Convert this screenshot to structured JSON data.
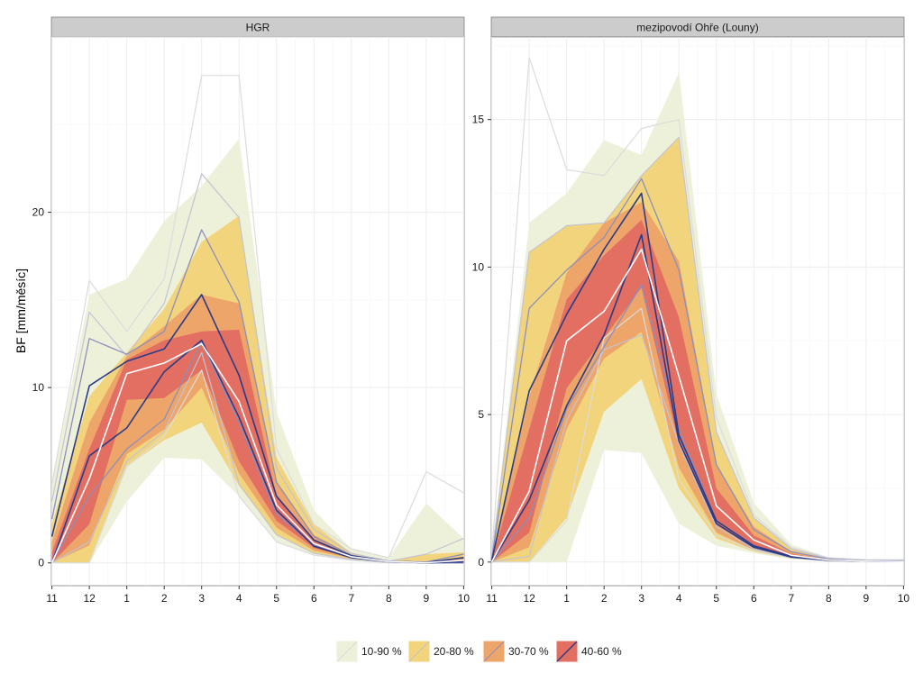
{
  "chart_data": {
    "type": "area",
    "ylabel": "BF [mm/měsíc]",
    "xlabel": "",
    "x_ticks": [
      "11",
      "12",
      "1",
      "2",
      "3",
      "4",
      "5",
      "6",
      "7",
      "8",
      "9",
      "10"
    ],
    "legend": {
      "position": "bottom",
      "entries": [
        "10-90 %",
        "20-80 %",
        "30-70 %",
        "40-60 %"
      ]
    },
    "colors": {
      "band_10_90": "#eef1da",
      "band_20_80": "#f2d47c",
      "band_30_70": "#eda56a",
      "band_40_60": "#e26f62",
      "median": "#ffffff",
      "bound_10_90": "#dcdcdc",
      "bound_20_80": "#c3c3d2",
      "bound_30_70": "#8c8fbb",
      "bound_40_60": "#2c3b86",
      "strip_bg": "#cccccc",
      "panel_bg": "#ffffff",
      "grid": "#ececec"
    },
    "panels": [
      {
        "title": "HGR",
        "ylim": [
          -1.3,
          30
        ],
        "y_ticks": [
          0,
          10,
          20
        ],
        "bands": {
          "p10_90": {
            "lower": [
              0,
              0,
              3.5,
              6,
              5.9,
              3.8,
              1.2,
              0.45,
              0.15,
              0,
              0,
              0
            ],
            "upper": [
              4.5,
              15.3,
              16.2,
              19.5,
              21.5,
              24.2,
              8.6,
              3,
              0.8,
              0.3,
              3.4,
              1.4
            ]
          },
          "p20_80": {
            "lower": [
              0,
              0,
              5.5,
              7,
              8,
              4.4,
              1.6,
              0.55,
              0.2,
              0.02,
              0,
              0
            ],
            "upper": [
              2.2,
              9.5,
              12,
              14.5,
              18.3,
              19.8,
              6,
              2.2,
              0.55,
              0.1,
              0.5,
              0.6
            ]
          },
          "p30_70": {
            "lower": [
              0,
              1,
              6.2,
              7.6,
              10,
              5.1,
              2,
              0.7,
              0.25,
              0.05,
              0,
              0
            ],
            "upper": [
              1.2,
              8,
              11.8,
              13.5,
              15.3,
              14.8,
              4.6,
              1.6,
              0.45,
              0.08,
              0.05,
              0.35
            ]
          },
          "p40_60": {
            "lower": [
              0,
              2.2,
              9.3,
              9.4,
              11,
              5.8,
              2.4,
              0.85,
              0.3,
              0.08,
              0,
              0.05
            ],
            "upper": [
              0.6,
              6.5,
              11.6,
              12.7,
              13.2,
              13.3,
              3.8,
              1.3,
              0.4,
              0.1,
              0.02,
              0.2
            ]
          }
        },
        "median": [
          0,
          4.8,
          10.8,
          11.4,
          12.5,
          9.2,
          3.3,
          1.1,
          0.35,
          0.08,
          0.01,
          0.15
        ],
        "bound_lines": {
          "l10": [
            0,
            0,
            5.5,
            7.2,
            11,
            3.8,
            1.2,
            0.45,
            0.15,
            0,
            0,
            0
          ],
          "u10": [
            4.5,
            16.1,
            13.2,
            16.2,
            27.8,
            27.8,
            6.5,
            2.2,
            0.8,
            0.3,
            5.2,
            4
          ],
          "l20": [
            0,
            1.2,
            5.8,
            7.5,
            12,
            4.5,
            1.6,
            0.55,
            0.2,
            0.02,
            0,
            0
          ],
          "u20": [
            3.5,
            14.3,
            11.8,
            14.8,
            22.2,
            19.7,
            5.4,
            1.9,
            0.55,
            0.1,
            0.5,
            1.4
          ],
          "l30": [
            0,
            3.8,
            6.5,
            8.2,
            12.6,
            8,
            2.8,
            1,
            0.3,
            0.06,
            0,
            0
          ],
          "u30": [
            2.5,
            12.8,
            11.9,
            13.2,
            19,
            14.9,
            4.6,
            1.5,
            0.45,
            0.08,
            0.05,
            0.5
          ],
          "l40": [
            0,
            6.1,
            7.7,
            10.9,
            12.7,
            8.3,
            3,
            0.95,
            0.3,
            0.08,
            0,
            0.05
          ],
          "u40": [
            1.5,
            10.1,
            11.5,
            12.2,
            15.3,
            10.7,
            3.8,
            1.3,
            0.4,
            0.1,
            0.02,
            0.3
          ]
        }
      },
      {
        "title": "mezipovodí Ohře (Louny)",
        "ylim": [
          -0.8,
          17.8
        ],
        "y_ticks": [
          0,
          5,
          10,
          15
        ],
        "bands": {
          "p10_90": {
            "lower": [
              0,
              0,
              0,
              3.8,
              3.7,
              1.3,
              0.55,
              0.3,
              0.1,
              0.03,
              0,
              0
            ],
            "upper": [
              0.3,
              11.5,
              12.5,
              14.3,
              13.8,
              16.6,
              5.7,
              2,
              0.6,
              0.15,
              0.08,
              0.08
            ]
          },
          "p20_80": {
            "lower": [
              0,
              0,
              1.5,
              5.1,
              6.2,
              2.5,
              0.8,
              0.35,
              0.12,
              0.04,
              0.02,
              0.02
            ]
          },
          "p30_70": {
            "lower": [
              0,
              0.5,
              4.5,
              6.9,
              7.8,
              3.2,
              1,
              0.4,
              0.14,
              0.05,
              0.02,
              0.02
            ],
            "upper": [
              0.1,
              5.6,
              9.8,
              11.5,
              12.2,
              10.2,
              3.3,
              1.2,
              0.35,
              0.1,
              0.04,
              0.04
            ]
          },
          "p40_60": {
            "lower": [
              0,
              1,
              5.9,
              7.6,
              9.3,
              4,
              1.3,
              0.5,
              0.17,
              0.06,
              0.03,
              0.02
            ],
            "upper": [
              0.05,
              4.5,
              8.9,
              10.4,
              11.6,
              8.3,
              2.5,
              0.9,
              0.28,
              0.08,
              0.03,
              0.03
            ]
          }
        },
        "median": [
          0,
          2.4,
          7.5,
          8.5,
          10.6,
          6.3,
          1.9,
          0.75,
          0.23,
          0.07,
          0.03,
          0.02
        ],
        "bound_lines": {
          "l10": [
            0,
            0,
            1.4,
            7.6,
            8.6,
            2.8,
            0.9,
            0.4,
            0.14,
            0.04,
            0.02,
            0.02
          ],
          "u10": [
            0.3,
            17.1,
            13.3,
            13.1,
            14.7,
            15,
            4.9,
            1.6,
            0.5,
            0.15,
            0.08,
            0.08
          ],
          "l20": [
            0,
            0.2,
            4.8,
            7.2,
            7.7,
            4,
            1.2,
            0.45,
            0.15,
            0.05,
            0.02,
            0.02
          ],
          "u20": [
            0.2,
            10.5,
            11.4,
            11.5,
            13.1,
            14.4,
            4.4,
            1.5,
            0.45,
            0.12,
            0.06,
            0.06
          ],
          "l30": [
            0,
            1.5,
            5.2,
            7.3,
            9.4,
            4.5,
            1.4,
            0.55,
            0.17,
            0.06,
            0.03,
            0.02
          ],
          "u30": [
            0.1,
            8.6,
            9.9,
            11,
            13,
            9.9,
            3.3,
            1.1,
            0.35,
            0.1,
            0.04,
            0.04
          ],
          "l40": [
            0,
            2.1,
            5.3,
            7.7,
            11.1,
            4.1,
            1.3,
            0.5,
            0.17,
            0.06,
            0.03,
            0.02
          ],
          "u40": [
            0.05,
            5.8,
            8.4,
            10.6,
            12.5,
            4.3,
            1.4,
            0.55,
            0.2,
            0.07,
            0.03,
            0.02
          ]
        }
      }
    ]
  }
}
